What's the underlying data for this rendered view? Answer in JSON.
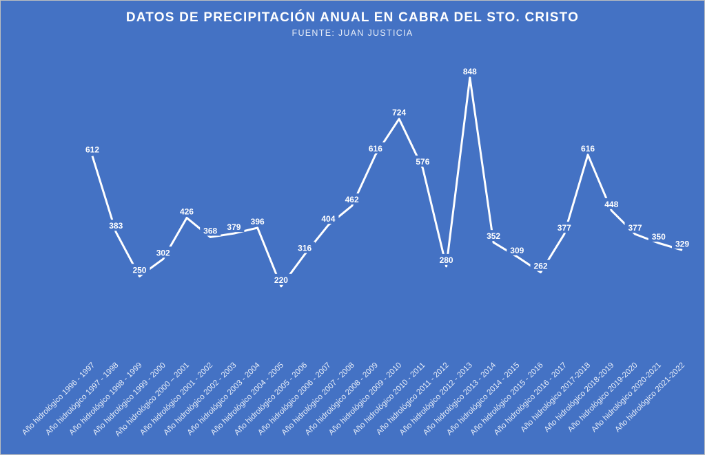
{
  "chart_data": {
    "type": "line",
    "title": "DATOS DE PRECIPITACIÓN ANUAL EN CABRA DEL STO. CRISTO",
    "subtitle": "FUENTE: JUAN JUSTICIA",
    "xlabel": "",
    "ylabel": "",
    "grid": false,
    "legend": "none",
    "categories": [
      "Año hidrológico 1996 - 1997",
      "Año hidrológico 1997 - 1998",
      "Año hidrológico 1998 - 1999",
      "Año hidrológico 1999 - 2000",
      "Año hidrológico 2000 – 2001",
      "Año hidrológico 2001 - 2002",
      "Año hidrológico 2002 - 2003",
      "Año hidrológico 2003 - 2004",
      "Año hidrológico 2004 - 2005",
      "Año hidrológico 2005 - 2006",
      "Año hidrológico 2006 - 2007",
      "Año hidrológico 2007 - 2008",
      "Año hidrológico 2008 - 2009",
      "Año hidrológico 2009 - 2010",
      "Año hidrológico 2010 - 2011",
      "Año hidrológico 2011 - 2012",
      "Año hidrológico 2012 - 2013",
      "Año hidrológico 2013 - 2014",
      "Año hidrológico 2014 - 2015",
      "Año hidrológico 2015 - 2016",
      "Año hidrológico 2016 - 2017",
      "Año hidrológico 2017-2018",
      "Año hidrológico 2018-2019",
      "Año hidrológico 2019-2020",
      "Año hidrológico 2020-2021",
      "Año hidrológico 2021-2022"
    ],
    "values": [
      612,
      383,
      250,
      302,
      426,
      368,
      379,
      396,
      220,
      316,
      404,
      462,
      616,
      724,
      576,
      280,
      848,
      352,
      309,
      262,
      377,
      616,
      448,
      377,
      350,
      329
    ],
    "ylim": [
      0,
      900
    ]
  },
  "colors": {
    "background": "#4472C4",
    "line": "#ffffff"
  }
}
